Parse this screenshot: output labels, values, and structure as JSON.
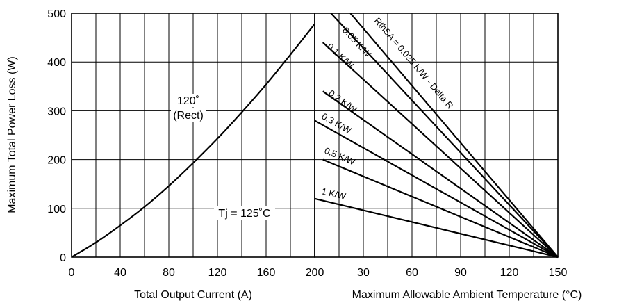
{
  "chart_data": [
    {
      "type": "line",
      "xlabel": "Total Output Current (A)",
      "ylabel": "Maximum Total Power Loss (W)",
      "xlim": [
        0,
        200
      ],
      "ylim": [
        0,
        500
      ],
      "x_ticks": [
        "0",
        "40",
        "80",
        "120",
        "160",
        "200"
      ],
      "y_ticks": [
        "0",
        "100",
        "200",
        "300",
        "400",
        "500"
      ],
      "grid": true,
      "annotations": [
        "120˚",
        "(Rect)",
        "Tj = 125˚C"
      ],
      "series": [
        {
          "x": [
            0,
            20,
            40,
            60,
            80,
            100,
            120,
            140,
            160,
            180,
            200
          ],
          "y": [
            0,
            30,
            65,
            103,
            146,
            193,
            243,
            297,
            354,
            415,
            478
          ]
        }
      ]
    },
    {
      "type": "line",
      "xlabel": "Maximum Allowable Ambient Temperature (°C)",
      "xlim": [
        0,
        150
      ],
      "ylim": [
        0,
        500
      ],
      "x_ticks": [
        "30",
        "60",
        "90",
        "120",
        "150"
      ],
      "grid": true,
      "series": [
        {
          "name": "RthSA = 0.025 K/W - Delta R",
          "x": [
            22,
            150
          ],
          "y": [
            500,
            0
          ]
        },
        {
          "name": "0.05 K/W",
          "x": [
            10,
            150
          ],
          "y": [
            500,
            0
          ]
        },
        {
          "name": "0.1 K/W",
          "x": [
            5,
            150
          ],
          "y": [
            440,
            0
          ]
        },
        {
          "name": "0.2 K/W",
          "x": [
            5,
            150
          ],
          "y": [
            340,
            0
          ]
        },
        {
          "name": "0.3 K/W",
          "x": [
            0,
            150
          ],
          "y": [
            280,
            0
          ]
        },
        {
          "name": "0.5 K/W",
          "x": [
            5,
            150
          ],
          "y": [
            200,
            0
          ]
        },
        {
          "name": "1 K/W",
          "x": [
            0,
            150
          ],
          "y": [
            120,
            0
          ]
        }
      ]
    }
  ]
}
